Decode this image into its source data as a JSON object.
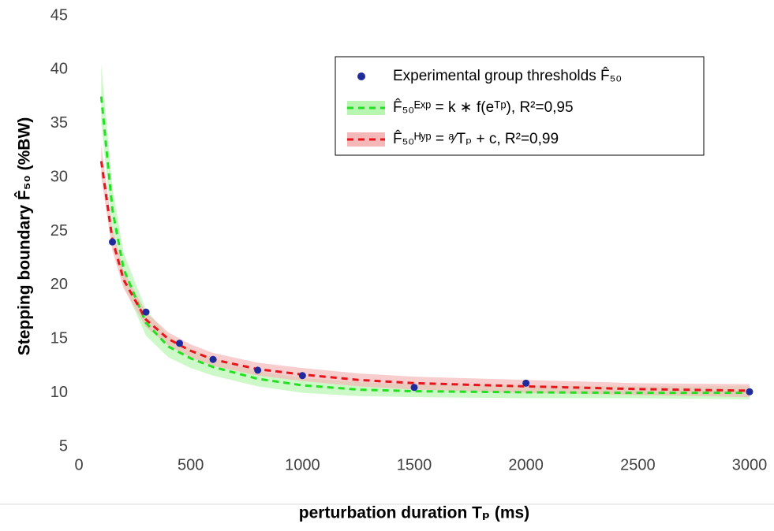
{
  "chart_data": {
    "type": "scatter-fit",
    "xlabel": "perturbation duration Tₚ (ms)",
    "ylabel": "Stepping boundary  F̂₅₀ (%BW)",
    "xlim": [
      0,
      3000
    ],
    "xticks": [
      0,
      500,
      1000,
      1500,
      2000,
      2500,
      3000
    ],
    "ylim": [
      5,
      45
    ],
    "yticks": [
      5,
      10,
      15,
      20,
      25,
      30,
      35,
      40,
      45
    ],
    "legend": "upper-right",
    "series": [
      {
        "name": "Experimental group thresholds F̂₅₀",
        "type": "scatter",
        "color": "#1f2a9c",
        "x": [
          150,
          300,
          450,
          600,
          800,
          1000,
          1500,
          2000,
          3000
        ],
        "values": [
          24,
          17.5,
          14.6,
          13.1,
          12.1,
          11.6,
          10.5,
          10.9,
          10.1
        ]
      },
      {
        "name": "F̂₅₀ᴱˣᵖ = k ∗ f(eᵀᵖ), R²=0,95",
        "type": "fit",
        "color": "#22e022",
        "band_color": "#b8f5b0",
        "x": [
          100,
          150,
          200,
          300,
          400,
          500,
          600,
          800,
          1000,
          1250,
          1500,
          2000,
          2500,
          3000
        ],
        "values": [
          37.5,
          27,
          21.5,
          16.5,
          14.3,
          13.2,
          12.4,
          11.3,
          10.7,
          10.3,
          10.15,
          10.05,
          10.0,
          10.0
        ],
        "upper": [
          40.5,
          29,
          23,
          17.7,
          15.3,
          14.1,
          13.2,
          12.0,
          11.4,
          11.0,
          10.8,
          10.7,
          10.6,
          10.6
        ],
        "lower": [
          35,
          25,
          20,
          15.3,
          13.3,
          12.3,
          11.6,
          10.6,
          10.0,
          9.7,
          9.6,
          9.5,
          9.5,
          9.4
        ]
      },
      {
        "name": "F̂₅₀ᴴʸᵖ = ᵃ⁄Tₚ + c, R²=0,99",
        "type": "fit",
        "color": "#e8141c",
        "band_color": "#f5b8b8",
        "x": [
          100,
          150,
          200,
          300,
          400,
          500,
          600,
          800,
          1000,
          1250,
          1500,
          2000,
          2500,
          3000
        ],
        "values": [
          31.5,
          24.2,
          20.5,
          16.8,
          15.0,
          13.9,
          13.1,
          12.2,
          11.7,
          11.2,
          10.9,
          10.6,
          10.35,
          10.2
        ],
        "upper": [
          33,
          25.2,
          21.3,
          17.5,
          15.6,
          14.5,
          13.7,
          12.8,
          12.3,
          11.8,
          11.5,
          11.2,
          10.9,
          10.8
        ],
        "lower": [
          30,
          23.2,
          19.7,
          16.1,
          14.4,
          13.3,
          12.5,
          11.6,
          11.1,
          10.6,
          10.3,
          10.0,
          9.8,
          9.6
        ]
      }
    ]
  }
}
